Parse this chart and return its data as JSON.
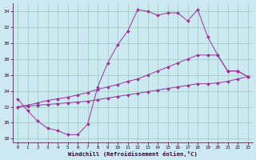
{
  "xlabel": "Windchill (Refroidissement éolien,°C)",
  "bg_color": "#cce8f0",
  "line_color": "#993399",
  "grid_color": "#99ccbb",
  "ylim": [
    17.5,
    35.0
  ],
  "xlim": [
    -0.5,
    23.5
  ],
  "yticks": [
    18,
    20,
    22,
    24,
    26,
    28,
    30,
    32,
    34
  ],
  "xticks": [
    0,
    1,
    2,
    3,
    4,
    5,
    6,
    7,
    8,
    9,
    10,
    11,
    12,
    13,
    14,
    15,
    16,
    17,
    18,
    19,
    20,
    21,
    22,
    23
  ],
  "line1_x": [
    0,
    1,
    2,
    3,
    4,
    5,
    6,
    7,
    8,
    9,
    10,
    11,
    12,
    13,
    14,
    15,
    16,
    17,
    18,
    19,
    20,
    21,
    22,
    23
  ],
  "line1_y": [
    23.0,
    21.5,
    20.2,
    19.3,
    19.0,
    18.5,
    18.5,
    19.8,
    24.5,
    27.5,
    29.8,
    31.5,
    34.2,
    34.0,
    33.5,
    33.8,
    33.8,
    32.8,
    34.2,
    30.8,
    28.5,
    26.5,
    26.5,
    25.8
  ],
  "line2_x": [
    0,
    1,
    2,
    3,
    4,
    5,
    6,
    7,
    8,
    9,
    10,
    11,
    12,
    13,
    14,
    15,
    16,
    17,
    18,
    19,
    20,
    21,
    22,
    23
  ],
  "line2_y": [
    22.0,
    22.2,
    22.5,
    22.8,
    23.0,
    23.2,
    23.5,
    23.8,
    24.2,
    24.5,
    24.8,
    25.2,
    25.5,
    26.0,
    26.5,
    27.0,
    27.5,
    28.0,
    28.5,
    28.5,
    28.5,
    26.5,
    26.5,
    25.8
  ],
  "line3_x": [
    0,
    1,
    2,
    3,
    4,
    5,
    6,
    7,
    8,
    9,
    10,
    11,
    12,
    13,
    14,
    15,
    16,
    17,
    18,
    19,
    20,
    21,
    22,
    23
  ],
  "line3_y": [
    22.0,
    22.1,
    22.2,
    22.3,
    22.4,
    22.5,
    22.6,
    22.7,
    22.9,
    23.1,
    23.3,
    23.5,
    23.7,
    23.9,
    24.1,
    24.3,
    24.5,
    24.7,
    24.9,
    24.9,
    25.0,
    25.2,
    25.5,
    25.8
  ]
}
